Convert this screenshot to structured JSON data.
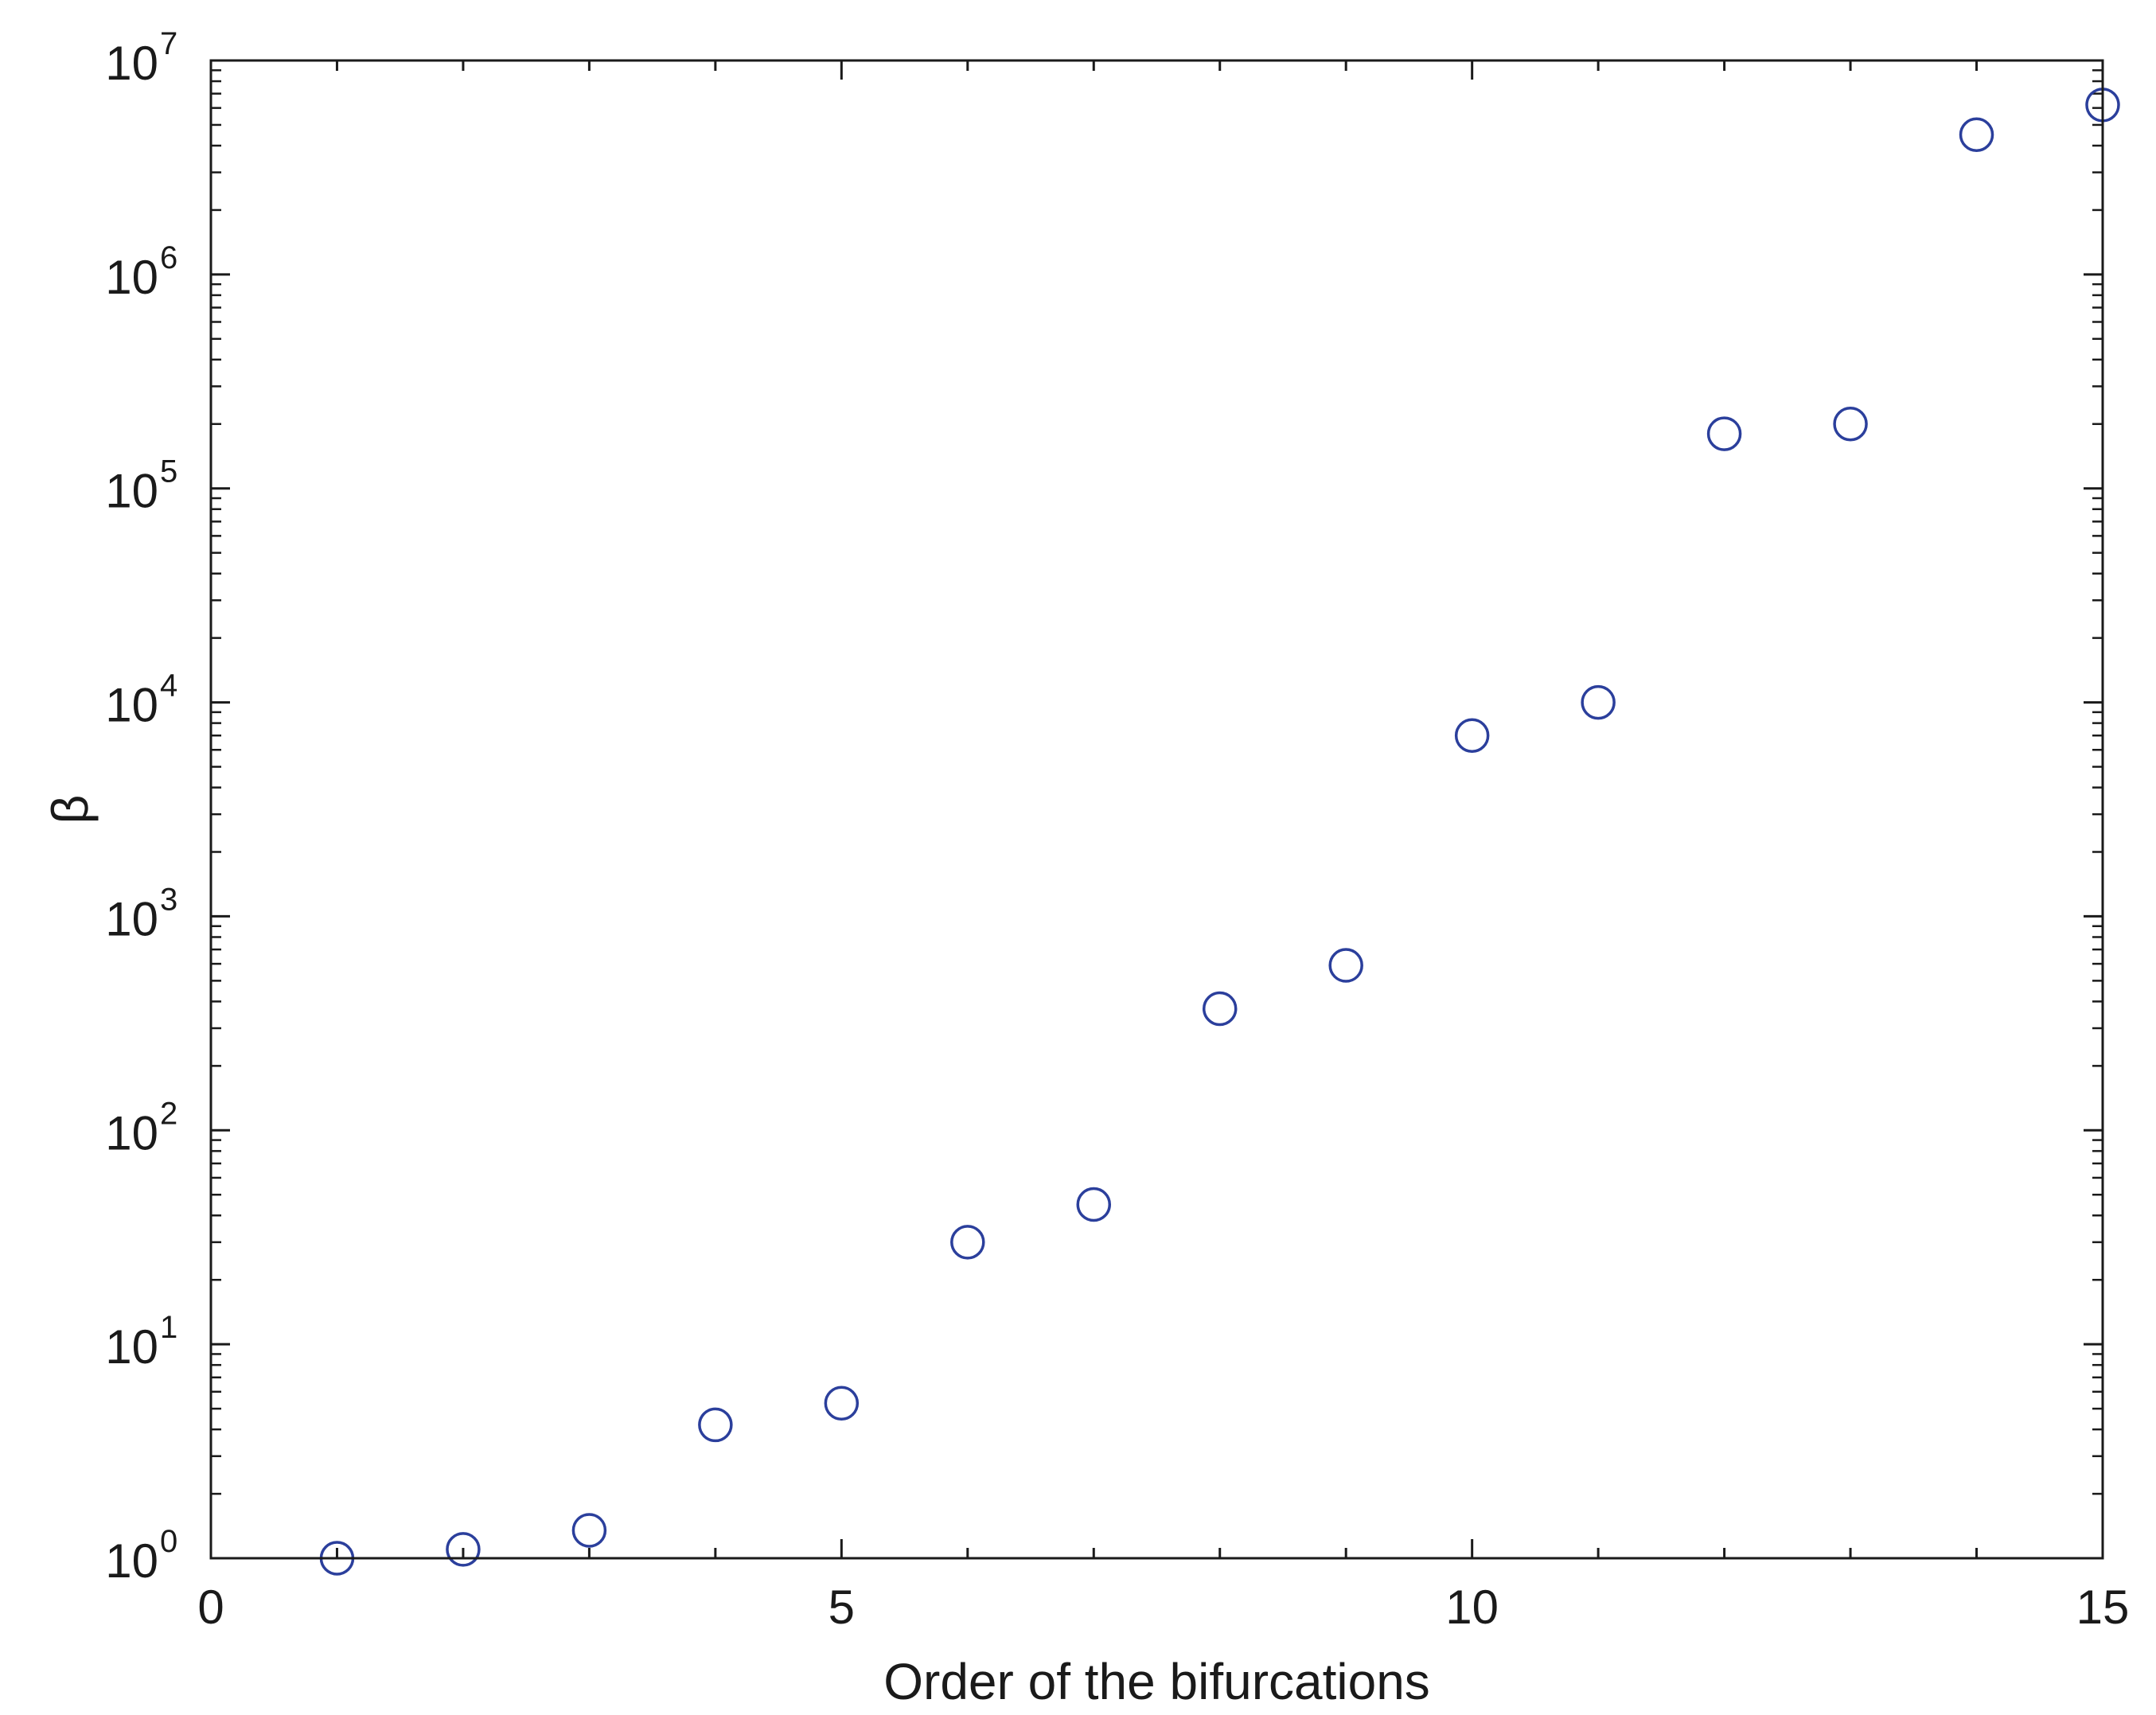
{
  "chart_data": {
    "type": "scatter",
    "title": "",
    "xlabel": "Order of the bifurcations",
    "ylabel": "β",
    "xlim": [
      0,
      15
    ],
    "ylim": [
      1,
      10000000
    ],
    "yscale": "log",
    "grid": false,
    "x_ticks": [
      {
        "value": 0,
        "label": "0"
      },
      {
        "value": 5,
        "label": "5"
      },
      {
        "value": 10,
        "label": "10"
      },
      {
        "value": 15,
        "label": "15"
      }
    ],
    "y_ticks": [
      {
        "value": 1,
        "base": "10",
        "exp": "0"
      },
      {
        "value": 10,
        "base": "10",
        "exp": "1"
      },
      {
        "value": 100,
        "base": "10",
        "exp": "2"
      },
      {
        "value": 1000,
        "base": "10",
        "exp": "3"
      },
      {
        "value": 10000,
        "base": "10",
        "exp": "4"
      },
      {
        "value": 100000,
        "base": "10",
        "exp": "5"
      },
      {
        "value": 1000000,
        "base": "10",
        "exp": "6"
      },
      {
        "value": 10000000,
        "base": "10",
        "exp": "7"
      }
    ],
    "series": [
      {
        "marker": "open-circle",
        "color": "#2b3f9c",
        "x": [
          1,
          2,
          3,
          4,
          5,
          6,
          7,
          8,
          9,
          10,
          11,
          12,
          13,
          14,
          15
        ],
        "y": [
          1.0,
          1.1,
          1.35,
          4.2,
          5.3,
          30,
          45,
          370,
          590,
          7000,
          10000,
          180000,
          200000,
          4500000,
          6200000
        ]
      }
    ]
  }
}
